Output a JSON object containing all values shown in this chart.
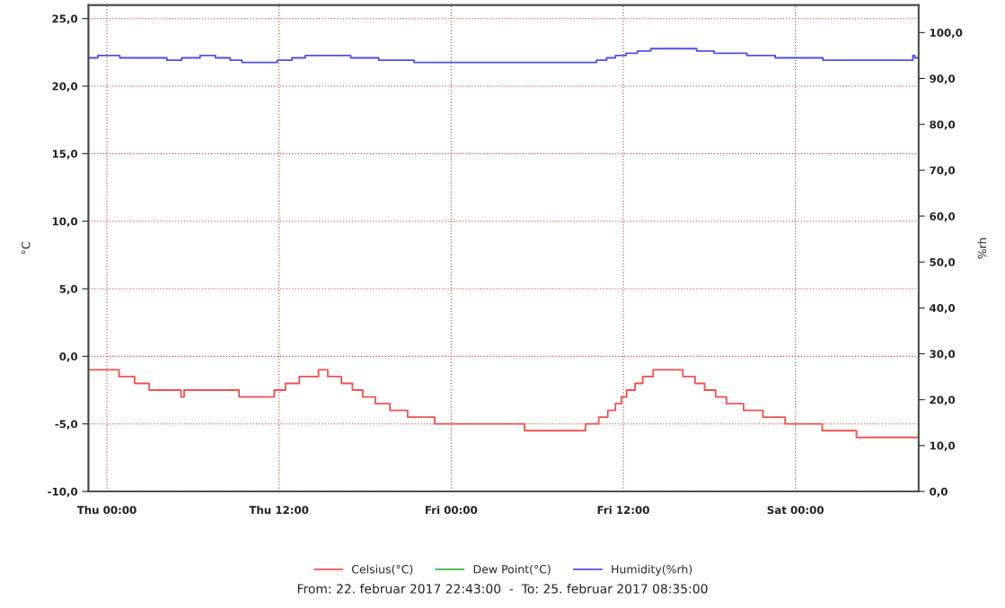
{
  "chart_data": {
    "type": "step",
    "ylabel": "°C",
    "y2label": "%rh",
    "xlim": [
      "2017-02-22T22:43",
      "2017-02-25T08:35"
    ],
    "xticks": [
      {
        "value": "2017-02-23T00:00",
        "label": "Thu 00:00"
      },
      {
        "value": "2017-02-23T12:00",
        "label": "Thu 12:00"
      },
      {
        "value": "2017-02-24T00:00",
        "label": "Fri 00:00"
      },
      {
        "value": "2017-02-24T12:00",
        "label": "Fri 12:00"
      },
      {
        "value": "2017-02-25T00:00",
        "label": "Sat 00:00"
      }
    ],
    "ylim": [
      -10,
      26
    ],
    "yticks": [
      {
        "value": -10,
        "label": "-10,0"
      },
      {
        "value": -5,
        "label": "-5,0"
      },
      {
        "value": 0,
        "label": "0,0"
      },
      {
        "value": 5,
        "label": "5,0"
      },
      {
        "value": 10,
        "label": "10,0"
      },
      {
        "value": 15,
        "label": "15,0"
      },
      {
        "value": 20,
        "label": "20,0"
      },
      {
        "value": 25,
        "label": "25,0"
      }
    ],
    "y2lim": [
      0,
      106
    ],
    "y2ticks": [
      {
        "value": 0,
        "label": "0,0"
      },
      {
        "value": 10,
        "label": "10,0"
      },
      {
        "value": 20,
        "label": "20,0"
      },
      {
        "value": 30,
        "label": "30,0"
      },
      {
        "value": 40,
        "label": "40,0"
      },
      {
        "value": 50,
        "label": "50,0"
      },
      {
        "value": 60,
        "label": "60,0"
      },
      {
        "value": 70,
        "label": "70,0"
      },
      {
        "value": 80,
        "label": "80,0"
      },
      {
        "value": 90,
        "label": "90,0"
      },
      {
        "value": 100,
        "label": "100,0"
      }
    ],
    "grid": true,
    "legend": "bottom",
    "series": [
      {
        "name": "Celsius(°C)",
        "color": "#f05050",
        "x": [
          "2017-02-22T22:43",
          "2017-02-23T00:51",
          "2017-02-23T01:56",
          "2017-02-23T02:57",
          "2017-02-23T05:10",
          "2017-02-23T05:23",
          "2017-02-23T09:13",
          "2017-02-23T11:40",
          "2017-02-23T12:27",
          "2017-02-23T13:25",
          "2017-02-23T14:45",
          "2017-02-23T15:24",
          "2017-02-23T16:21",
          "2017-02-23T17:07",
          "2017-02-23T17:50",
          "2017-02-23T18:43",
          "2017-02-23T19:44",
          "2017-02-23T20:58",
          "2017-02-23T22:51",
          "2017-02-24T05:07",
          "2017-02-24T09:22",
          "2017-02-24T10:17",
          "2017-02-24T10:55",
          "2017-02-24T11:27",
          "2017-02-24T11:52",
          "2017-02-24T12:14",
          "2017-02-24T12:49",
          "2017-02-24T13:21",
          "2017-02-24T14:05",
          "2017-02-24T16:09",
          "2017-02-24T17:00",
          "2017-02-24T17:40",
          "2017-02-24T18:26",
          "2017-02-24T19:11",
          "2017-02-24T20:23",
          "2017-02-24T21:44",
          "2017-02-24T23:17",
          "2017-02-25T01:52",
          "2017-02-25T04:15",
          "2017-02-25T08:35"
        ],
        "values": [
          -1.0,
          -1.5,
          -2.0,
          -2.5,
          -3.0,
          -2.5,
          -3.0,
          -2.5,
          -2.0,
          -1.5,
          -1.0,
          -1.5,
          -2.0,
          -2.5,
          -3.0,
          -3.5,
          -4.0,
          -4.5,
          -5.0,
          -5.5,
          -5.0,
          -4.5,
          -4.0,
          -3.5,
          -3.0,
          -2.5,
          -2.0,
          -1.5,
          -1.0,
          -1.5,
          -2.0,
          -2.5,
          -3.0,
          -3.5,
          -4.0,
          -4.5,
          -5.0,
          -5.5,
          -6.0,
          -6.0
        ]
      },
      {
        "name": "Dew Point(°C)",
        "color": "#3cb043"
      },
      {
        "name": "Humidity(%rh)",
        "color": "#5050e0",
        "axis": "y2",
        "x": [
          "2017-02-22T22:43",
          "2017-02-22T23:22",
          "2017-02-23T00:54",
          "2017-02-23T04:11",
          "2017-02-23T05:13",
          "2017-02-23T06:30",
          "2017-02-23T07:34",
          "2017-02-23T08:36",
          "2017-02-23T09:25",
          "2017-02-23T11:53",
          "2017-02-23T12:54",
          "2017-02-23T13:50",
          "2017-02-23T17:00",
          "2017-02-23T18:57",
          "2017-02-23T21:25",
          "2017-02-24T10:08",
          "2017-02-24T10:50",
          "2017-02-24T11:27",
          "2017-02-24T12:11",
          "2017-02-24T12:59",
          "2017-02-24T13:55",
          "2017-02-24T17:07",
          "2017-02-24T18:20",
          "2017-02-24T20:37",
          "2017-02-24T22:35",
          "2017-02-25T01:55",
          "2017-02-25T08:11",
          "2017-02-25T08:19",
          "2017-02-25T08:35"
        ],
        "values": [
          94.5,
          95.0,
          94.5,
          94.0,
          94.5,
          95.0,
          94.5,
          94.0,
          93.5,
          94.0,
          94.5,
          95.0,
          94.5,
          94.0,
          93.5,
          94.0,
          94.5,
          95.0,
          95.5,
          96.0,
          96.5,
          96.0,
          95.5,
          95.0,
          94.5,
          94.0,
          95.0,
          94.5,
          94.5
        ]
      }
    ],
    "annotations": [
      "From: 22. februar 2017 22:43:00  -  To: 25. februar 2017 08:35:00"
    ]
  }
}
